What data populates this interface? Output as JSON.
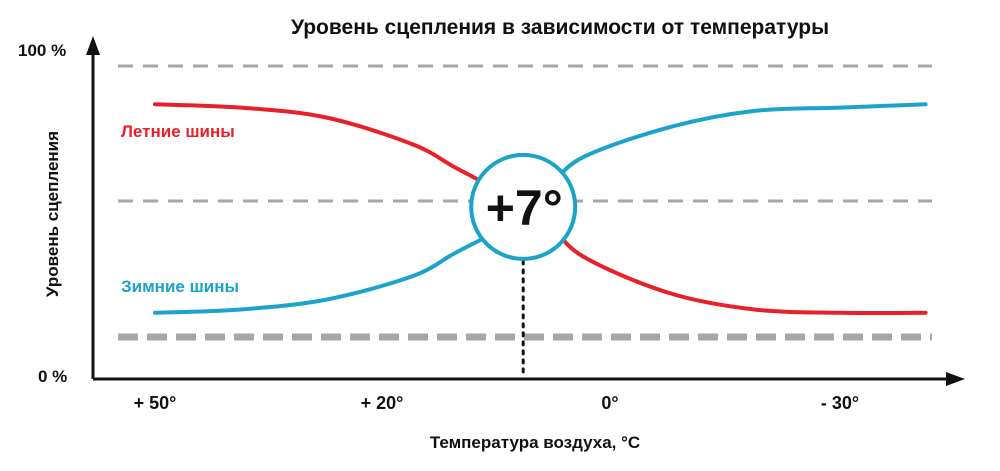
{
  "chart_data": {
    "type": "line",
    "title": "Уровень сцепления в зависимости от температуры",
    "xlabel": "Температура воздуха, °C",
    "ylabel": "Уровень сцепления",
    "x_tick_labels": [
      "+ 50°",
      "+ 20°",
      "0°",
      "- 30°"
    ],
    "y_tick_labels": [
      "0 %",
      "100 %"
    ],
    "ylim": [
      0,
      100
    ],
    "x_axis_direction": "decreasing temperature to the right",
    "crossover_label": "+7°",
    "crossover_temperature": 7,
    "grid": "dashed horizontal lines",
    "series": [
      {
        "name": "Летние шины",
        "color": "#e8202a",
        "x": [
          50,
          40,
          30,
          20,
          15,
          10,
          7,
          4,
          0,
          -10,
          -20,
          -30,
          -40
        ],
        "y": [
          83,
          82,
          79,
          71,
          64,
          57,
          52,
          47,
          37,
          26,
          21,
          20,
          20
        ]
      },
      {
        "name": "Зимние шины",
        "color": "#1ba3c9",
        "x": [
          50,
          40,
          30,
          20,
          15,
          10,
          7,
          4,
          0,
          -10,
          -20,
          -30,
          -40
        ],
        "y": [
          20,
          21,
          24,
          31,
          38,
          45,
          52,
          58,
          67,
          76,
          81,
          82,
          83
        ]
      }
    ]
  },
  "colors": {
    "axis": "#111111",
    "grid": "#a6a6a6",
    "badge_stroke": "#1ba3c9"
  }
}
